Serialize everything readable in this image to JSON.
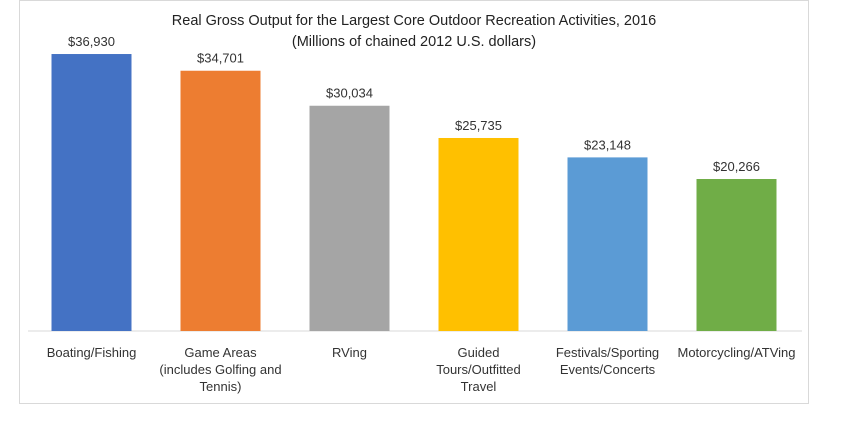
{
  "chart_data": {
    "type": "bar",
    "title": "Real Gross Output for the Largest Core Outdoor Recreation Activities, 2016",
    "subtitle": "(Millions of chained 2012 U.S. dollars)",
    "categories": [
      [
        "Boating/Fishing"
      ],
      [
        "Game Areas",
        "(includes Golfing and",
        "Tennis)"
      ],
      [
        "RVing"
      ],
      [
        "Guided",
        "Tours/Outfitted",
        "Travel"
      ],
      [
        "Festivals/Sporting",
        "Events/Concerts"
      ],
      [
        "Motorcycling/ATVing"
      ]
    ],
    "values": [
      36930,
      34701,
      30034,
      25735,
      23148,
      20266
    ],
    "data_labels": [
      "$36,930",
      "$34,701",
      "$30,034",
      "$25,735",
      "$23,148",
      "$20,266"
    ],
    "colors": [
      "#4472c4",
      "#ed7d31",
      "#a5a5a5",
      "#ffc000",
      "#5b9bd5",
      "#70ad47"
    ],
    "ylim": [
      0,
      40000
    ],
    "grid": false,
    "legend": "none"
  }
}
